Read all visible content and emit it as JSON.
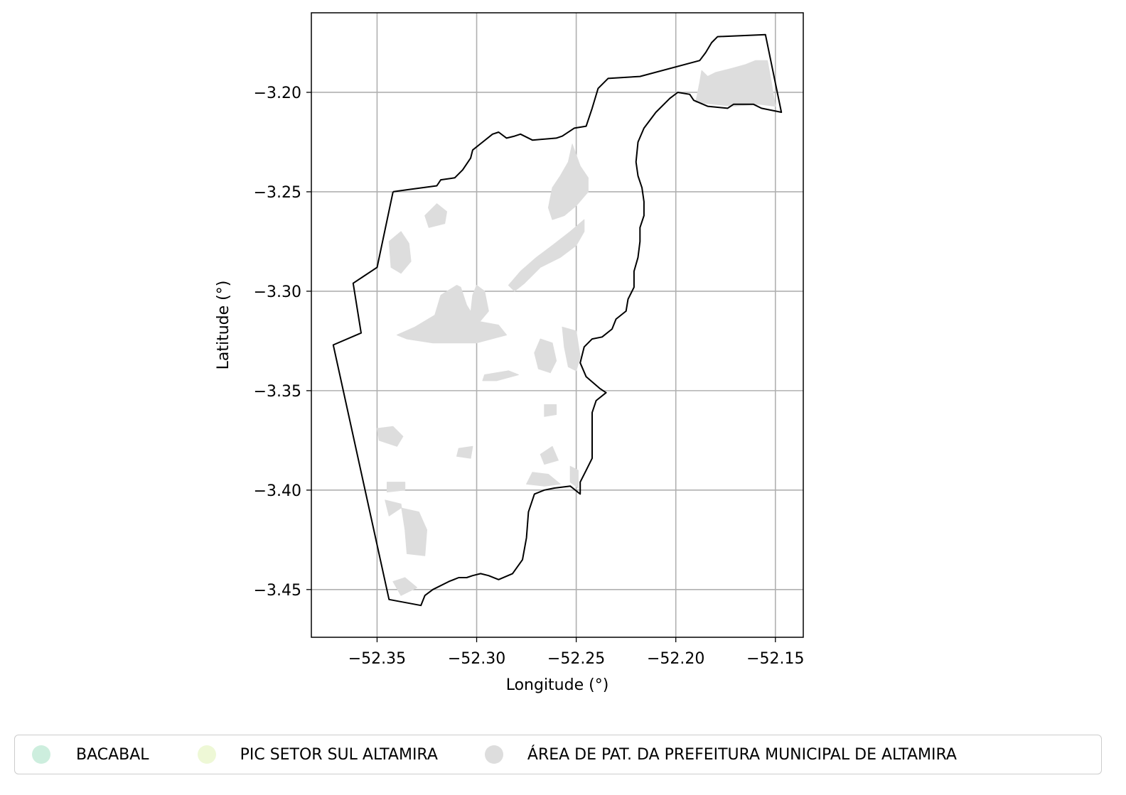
{
  "chart_data": {
    "type": "map",
    "xlabel": "Longitude (°)",
    "ylabel": "Latitude (°)",
    "xlim": [
      -52.383,
      -52.136
    ],
    "ylim": [
      -3.474,
      -3.16
    ],
    "x_ticks": [
      -52.35,
      -52.3,
      -52.25,
      -52.2,
      -52.15
    ],
    "y_ticks": [
      -3.2,
      -3.25,
      -3.3,
      -3.35,
      -3.4,
      -3.45
    ],
    "x_tick_labels": [
      "−52.35",
      "−52.30",
      "−52.25",
      "−52.20",
      "−52.15"
    ],
    "y_tick_labels": [
      "−3.20",
      "−3.25",
      "−3.30",
      "−3.35",
      "−3.40",
      "−3.45"
    ],
    "grid": true,
    "legend_position": "bottom",
    "boundary": [
      [
        -52.342,
        -3.25
      ],
      [
        -52.335,
        -3.249
      ],
      [
        -52.32,
        -3.247
      ],
      [
        -52.318,
        -3.244
      ],
      [
        -52.311,
        -3.243
      ],
      [
        -52.307,
        -3.239
      ],
      [
        -52.303,
        -3.233
      ],
      [
        -52.302,
        -3.229
      ],
      [
        -52.297,
        -3.225
      ],
      [
        -52.292,
        -3.221
      ],
      [
        -52.289,
        -3.22
      ],
      [
        -52.285,
        -3.223
      ],
      [
        -52.281,
        -3.222
      ],
      [
        -52.278,
        -3.221
      ],
      [
        -52.272,
        -3.224
      ],
      [
        -52.26,
        -3.223
      ],
      [
        -52.257,
        -3.222
      ],
      [
        -52.251,
        -3.218
      ],
      [
        -52.245,
        -3.217
      ],
      [
        -52.242,
        -3.208
      ],
      [
        -52.239,
        -3.198
      ],
      [
        -52.234,
        -3.193
      ],
      [
        -52.218,
        -3.192
      ],
      [
        -52.188,
        -3.184
      ],
      [
        -52.185,
        -3.18
      ],
      [
        -52.182,
        -3.175
      ],
      [
        -52.179,
        -3.172
      ],
      [
        -52.155,
        -3.171
      ],
      [
        -52.147,
        -3.21
      ],
      [
        -52.157,
        -3.208
      ],
      [
        -52.161,
        -3.206
      ],
      [
        -52.171,
        -3.206
      ],
      [
        -52.174,
        -3.208
      ],
      [
        -52.184,
        -3.207
      ],
      [
        -52.191,
        -3.204
      ],
      [
        -52.193,
        -3.201
      ],
      [
        -52.199,
        -3.2
      ],
      [
        -52.203,
        -3.203
      ],
      [
        -52.21,
        -3.21
      ],
      [
        -52.216,
        -3.218
      ],
      [
        -52.219,
        -3.225
      ],
      [
        -52.22,
        -3.235
      ],
      [
        -52.219,
        -3.242
      ],
      [
        -52.217,
        -3.248
      ],
      [
        -52.216,
        -3.255
      ],
      [
        -52.216,
        -3.262
      ],
      [
        -52.218,
        -3.268
      ],
      [
        -52.218,
        -3.275
      ],
      [
        -52.219,
        -3.283
      ],
      [
        -52.221,
        -3.29
      ],
      [
        -52.221,
        -3.298
      ],
      [
        -52.224,
        -3.304
      ],
      [
        -52.225,
        -3.31
      ],
      [
        -52.23,
        -3.314
      ],
      [
        -52.232,
        -3.319
      ],
      [
        -52.237,
        -3.323
      ],
      [
        -52.242,
        -3.324
      ],
      [
        -52.246,
        -3.328
      ],
      [
        -52.248,
        -3.336
      ],
      [
        -52.245,
        -3.343
      ],
      [
        -52.238,
        -3.349
      ],
      [
        -52.235,
        -3.351
      ],
      [
        -52.24,
        -3.355
      ],
      [
        -52.242,
        -3.361
      ],
      [
        -52.242,
        -3.372
      ],
      [
        -52.242,
        -3.384
      ],
      [
        -52.245,
        -3.39
      ],
      [
        -52.248,
        -3.396
      ],
      [
        -52.248,
        -3.402
      ],
      [
        -52.253,
        -3.398
      ],
      [
        -52.261,
        -3.399
      ],
      [
        -52.266,
        -3.4
      ],
      [
        -52.271,
        -3.402
      ],
      [
        -52.274,
        -3.411
      ],
      [
        -52.275,
        -3.424
      ],
      [
        -52.277,
        -3.435
      ],
      [
        -52.282,
        -3.442
      ],
      [
        -52.289,
        -3.445
      ],
      [
        -52.294,
        -3.443
      ],
      [
        -52.298,
        -3.442
      ],
      [
        -52.302,
        -3.443
      ],
      [
        -52.305,
        -3.444
      ],
      [
        -52.309,
        -3.444
      ],
      [
        -52.314,
        -3.446
      ],
      [
        -52.322,
        -3.45
      ],
      [
        -52.326,
        -3.453
      ],
      [
        -52.328,
        -3.458
      ],
      [
        -52.344,
        -3.455
      ],
      [
        -52.372,
        -3.327
      ],
      [
        -52.358,
        -3.321
      ],
      [
        -52.362,
        -3.296
      ],
      [
        -52.35,
        -3.288
      ],
      [
        -52.342,
        -3.25
      ]
    ],
    "series": [
      {
        "name": "BACABAL",
        "color": "#cdeede",
        "areas": []
      },
      {
        "name": "PIC SETOR SUL ALTAMIRA",
        "color": "#eef8d6",
        "areas": []
      },
      {
        "name": "ÁREA DE PAT. DA PREFEITURA MUNICIPAL DE ALTAMIRA",
        "color": "#dddddd",
        "areas": [
          [
            [
              -52.19,
              -3.205
            ],
            [
              -52.188,
              -3.195
            ],
            [
              -52.187,
              -3.189
            ],
            [
              -52.184,
              -3.192
            ],
            [
              -52.18,
              -3.19
            ],
            [
              -52.172,
              -3.188
            ],
            [
              -52.165,
              -3.186
            ],
            [
              -52.16,
              -3.184
            ],
            [
              -52.154,
              -3.184
            ],
            [
              -52.152,
              -3.195
            ],
            [
              -52.15,
              -3.207
            ],
            [
              -52.158,
              -3.206
            ],
            [
              -52.171,
              -3.207
            ],
            [
              -52.181,
              -3.206
            ]
          ],
          [
            [
              -52.252,
              -3.226
            ],
            [
              -52.254,
              -3.235
            ],
            [
              -52.258,
              -3.242
            ],
            [
              -52.262,
              -3.248
            ],
            [
              -52.264,
              -3.258
            ],
            [
              -52.262,
              -3.264
            ],
            [
              -52.256,
              -3.262
            ],
            [
              -52.25,
              -3.257
            ],
            [
              -52.244,
              -3.25
            ],
            [
              -52.244,
              -3.243
            ],
            [
              -52.248,
              -3.237
            ]
          ],
          [
            [
              -52.246,
              -3.264
            ],
            [
              -52.253,
              -3.27
            ],
            [
              -52.262,
              -3.277
            ],
            [
              -52.27,
              -3.283
            ],
            [
              -52.278,
              -3.29
            ],
            [
              -52.284,
              -3.297
            ],
            [
              -52.281,
              -3.3
            ],
            [
              -52.276,
              -3.296
            ],
            [
              -52.268,
              -3.288
            ],
            [
              -52.258,
              -3.283
            ],
            [
              -52.25,
              -3.277
            ],
            [
              -52.246,
              -3.27
            ]
          ],
          [
            [
              -52.31,
              -3.297
            ],
            [
              -52.318,
              -3.302
            ],
            [
              -52.321,
              -3.312
            ],
            [
              -52.331,
              -3.318
            ],
            [
              -52.34,
              -3.322
            ],
            [
              -52.335,
              -3.324
            ],
            [
              -52.322,
              -3.326
            ],
            [
              -52.3,
              -3.326
            ],
            [
              -52.285,
              -3.322
            ],
            [
              -52.289,
              -3.317
            ],
            [
              -52.3,
              -3.315
            ],
            [
              -52.305,
              -3.307
            ],
            [
              -52.308,
              -3.298
            ]
          ],
          [
            [
              -52.3,
              -3.297
            ],
            [
              -52.296,
              -3.3
            ],
            [
              -52.294,
              -3.31
            ],
            [
              -52.299,
              -3.316
            ],
            [
              -52.303,
              -3.311
            ],
            [
              -52.302,
              -3.302
            ]
          ],
          [
            [
              -52.338,
              -3.27
            ],
            [
              -52.344,
              -3.275
            ],
            [
              -52.343,
              -3.288
            ],
            [
              -52.338,
              -3.291
            ],
            [
              -52.333,
              -3.285
            ],
            [
              -52.334,
              -3.276
            ]
          ],
          [
            [
              -52.32,
              -3.256
            ],
            [
              -52.315,
              -3.26
            ],
            [
              -52.316,
              -3.266
            ],
            [
              -52.324,
              -3.268
            ],
            [
              -52.326,
              -3.262
            ]
          ],
          [
            [
              -52.257,
              -3.318
            ],
            [
              -52.25,
              -3.32
            ],
            [
              -52.248,
              -3.333
            ],
            [
              -52.25,
              -3.34
            ],
            [
              -52.254,
              -3.338
            ],
            [
              -52.256,
              -3.328
            ]
          ],
          [
            [
              -52.268,
              -3.324
            ],
            [
              -52.262,
              -3.326
            ],
            [
              -52.26,
              -3.335
            ],
            [
              -52.263,
              -3.341
            ],
            [
              -52.269,
              -3.339
            ],
            [
              -52.271,
              -3.331
            ]
          ],
          [
            [
              -52.296,
              -3.342
            ],
            [
              -52.284,
              -3.34
            ],
            [
              -52.279,
              -3.342
            ],
            [
              -52.29,
              -3.345
            ],
            [
              -52.297,
              -3.345
            ]
          ],
          [
            [
              -52.26,
              -3.357
            ],
            [
              -52.266,
              -3.357
            ],
            [
              -52.266,
              -3.363
            ],
            [
              -52.26,
              -3.362
            ]
          ],
          [
            [
              -52.35,
              -3.369
            ],
            [
              -52.342,
              -3.368
            ],
            [
              -52.337,
              -3.373
            ],
            [
              -52.34,
              -3.378
            ],
            [
              -52.349,
              -3.375
            ]
          ],
          [
            [
              -52.309,
              -3.379
            ],
            [
              -52.302,
              -3.378
            ],
            [
              -52.303,
              -3.384
            ],
            [
              -52.31,
              -3.383
            ]
          ],
          [
            [
              -52.262,
              -3.378
            ],
            [
              -52.268,
              -3.382
            ],
            [
              -52.266,
              -3.387
            ],
            [
              -52.259,
              -3.385
            ]
          ],
          [
            [
              -52.272,
              -3.391
            ],
            [
              -52.264,
              -3.392
            ],
            [
              -52.258,
              -3.397
            ],
            [
              -52.266,
              -3.398
            ],
            [
              -52.275,
              -3.397
            ]
          ],
          [
            [
              -52.253,
              -3.388
            ],
            [
              -52.249,
              -3.39
            ],
            [
              -52.249,
              -3.399
            ],
            [
              -52.253,
              -3.396
            ]
          ],
          [
            [
              -52.345,
              -3.396
            ],
            [
              -52.336,
              -3.396
            ],
            [
              -52.336,
              -3.4
            ],
            [
              -52.345,
              -3.401
            ]
          ],
          [
            [
              -52.346,
              -3.405
            ],
            [
              -52.338,
              -3.407
            ],
            [
              -52.336,
              -3.42
            ],
            [
              -52.335,
              -3.432
            ],
            [
              -52.326,
              -3.433
            ],
            [
              -52.325,
              -3.42
            ],
            [
              -52.329,
              -3.411
            ],
            [
              -52.338,
              -3.409
            ],
            [
              -52.344,
              -3.413
            ]
          ],
          [
            [
              -52.342,
              -3.446
            ],
            [
              -52.336,
              -3.444
            ],
            [
              -52.33,
              -3.449
            ],
            [
              -52.338,
              -3.453
            ]
          ]
        ]
      }
    ]
  }
}
